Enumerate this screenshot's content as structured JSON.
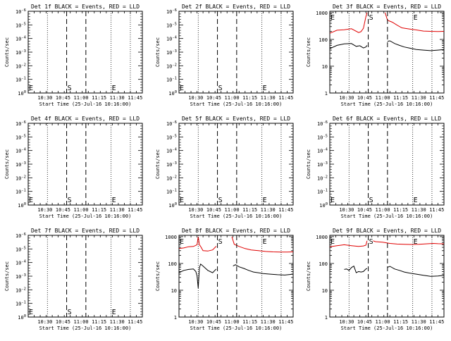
{
  "x_tick_labels": [
    "10:30",
    "10:45",
    "11:00",
    "11:15",
    "11:30",
    "11:45"
  ],
  "x_ticks_min": [
    14,
    29,
    44,
    59,
    74,
    89
  ],
  "xlabel": "Start Time (25-Jul-16 10:16:00)",
  "ylabel": "Counts/sec",
  "panels": [
    {
      "title": "Det 1f BLACK = Events, RED = LLD",
      "scale": "exp",
      "ytick_labels": [
        "10^0",
        "10^-1",
        "10^-2",
        "10^-3",
        "10^-4",
        "10^-5",
        "10^-6"
      ]
    },
    {
      "title": "Det 2f BLACK = Events, RED = LLD",
      "scale": "exp",
      "ytick_labels": [
        "10^0",
        "10^-1",
        "10^-2",
        "10^-3",
        "10^-4",
        "10^-5",
        "10^-6"
      ]
    },
    {
      "title": "Det 3f BLACK = Events, RED = LLD",
      "scale": "log",
      "ytick_labels": [
        "1",
        "10",
        "100",
        "1000"
      ]
    },
    {
      "title": "Det 4f BLACK = Events, RED = LLD",
      "scale": "exp",
      "ytick_labels": [
        "10^0",
        "10^-1",
        "10^-2",
        "10^-3",
        "10^-4",
        "10^-5",
        "10^-6"
      ]
    },
    {
      "title": "Det 5f BLACK = Events, RED = LLD",
      "scale": "exp",
      "ytick_labels": [
        "10^0",
        "10^-1",
        "10^-2",
        "10^-3",
        "10^-4",
        "10^-5",
        "10^-6"
      ]
    },
    {
      "title": "Det 6f BLACK = Events, RED = LLD",
      "scale": "exp",
      "ytick_labels": [
        "10^0",
        "10^-1",
        "10^-2",
        "10^-3",
        "10^-4",
        "10^-5",
        "10^-6"
      ]
    },
    {
      "title": "Det 7f BLACK = Events, RED = LLD",
      "scale": "exp",
      "ytick_labels": [
        "10^0",
        "10^-1",
        "10^-2",
        "10^-3",
        "10^-4",
        "10^-5",
        "10^-6"
      ]
    },
    {
      "title": "Det 8f BLACK = Events, RED = LLD",
      "scale": "log",
      "ytick_labels": [
        "1",
        "10",
        "100",
        "1000"
      ]
    },
    {
      "title": "Det 9f BLACK = Events, RED = LLD",
      "scale": "log",
      "ytick_labels": [
        "1",
        "10",
        "100",
        "1000"
      ]
    }
  ],
  "markers": {
    "dotted_min": [
      0,
      16,
      69,
      85
    ],
    "dashed_min": [
      32,
      48
    ],
    "labels": [
      {
        "text": "E",
        "x_min": 0.6
      },
      {
        "text": "S",
        "x_min": 32.6
      },
      {
        "text": "E",
        "x_min": 69.6
      }
    ]
  },
  "colors": {
    "events": "#000000",
    "lld": "#e00000",
    "axis": "#000000",
    "background": "#ffffff"
  },
  "chart_data": [
    {
      "type": "line",
      "title": "Det 1f BLACK = Events, RED = LLD",
      "series": []
    },
    {
      "type": "line",
      "title": "Det 2f BLACK = Events, RED = LLD",
      "series": []
    },
    {
      "type": "line",
      "title": "Det 3f BLACK = Events, RED = LLD",
      "ylim": [
        1,
        1000
      ],
      "yscale": "log",
      "series": [
        {
          "color": "red",
          "x": [
            0,
            6,
            12,
            18,
            24,
            26,
            28,
            30,
            31
          ],
          "y": [
            170,
            220,
            230,
            250,
            180,
            195,
            260,
            700,
            1000
          ]
        },
        {
          "color": "red",
          "x": [
            46,
            48,
            52,
            56,
            60,
            66,
            72,
            78,
            84,
            90,
            95
          ],
          "y": [
            1000,
            520,
            440,
            340,
            270,
            245,
            225,
            205,
            200,
            198,
            200
          ]
        },
        {
          "color": "black",
          "x": [
            0,
            6,
            12,
            18,
            22,
            25,
            28,
            30,
            31
          ],
          "y": [
            45,
            60,
            68,
            70,
            55,
            58,
            48,
            52,
            60
          ]
        },
        {
          "color": "black",
          "x": [
            48,
            50,
            54,
            58,
            62,
            66,
            72,
            78,
            84,
            90,
            95
          ],
          "y": [
            85,
            88,
            70,
            60,
            52,
            48,
            42,
            40,
            38,
            40,
            42
          ]
        }
      ]
    },
    {
      "type": "line",
      "title": "Det 4f BLACK = Events, RED = LLD",
      "series": []
    },
    {
      "type": "line",
      "title": "Det 5f BLACK = Events, RED = LLD",
      "series": []
    },
    {
      "type": "line",
      "title": "Det 6f BLACK = Events, RED = LLD",
      "series": []
    },
    {
      "type": "line",
      "title": "Det 7f BLACK = Events, RED = LLD",
      "series": []
    },
    {
      "type": "line",
      "title": "Det 8f BLACK = Events, RED = LLD",
      "ylim": [
        1,
        1000
      ],
      "yscale": "log",
      "series": [
        {
          "color": "red",
          "x": [
            0,
            4,
            8,
            12,
            15,
            16,
            17,
            18,
            20,
            24,
            28,
            31
          ],
          "y": [
            360,
            380,
            420,
            430,
            500,
            1000,
            500,
            430,
            300,
            290,
            320,
            440
          ]
        },
        {
          "color": "red",
          "x": [
            44,
            46,
            50,
            55,
            60,
            66,
            72,
            78,
            84,
            90,
            95
          ],
          "y": [
            1000,
            520,
            430,
            360,
            320,
            300,
            280,
            270,
            265,
            265,
            270
          ]
        },
        {
          "color": "black",
          "x": [
            0,
            4,
            8,
            12,
            14,
            15,
            16,
            17,
            18,
            20,
            24,
            28,
            31
          ],
          "y": [
            45,
            55,
            60,
            62,
            50,
            35,
            12,
            70,
            95,
            80,
            55,
            45,
            62
          ]
        },
        {
          "color": "black",
          "x": [
            45,
            47,
            50,
            54,
            58,
            62,
            66,
            70,
            76,
            82,
            88,
            95
          ],
          "y": [
            80,
            90,
            75,
            65,
            55,
            48,
            45,
            42,
            40,
            38,
            37,
            40
          ]
        }
      ]
    },
    {
      "type": "line",
      "title": "Det 9f BLACK = Events, RED = LLD",
      "ylim": [
        1,
        1000
      ],
      "yscale": "log",
      "series": [
        {
          "color": "red",
          "x": [
            0,
            6,
            12,
            18,
            24,
            28,
            30,
            31
          ],
          "y": [
            420,
            460,
            500,
            460,
            430,
            450,
            480,
            700
          ]
        },
        {
          "color": "red",
          "x": [
            36,
            38,
            44,
            50,
            56,
            62,
            68,
            74,
            80,
            86,
            90,
            95
          ],
          "y": [
            700,
            650,
            620,
            560,
            530,
            520,
            510,
            520,
            540,
            560,
            545,
            540
          ]
        },
        {
          "color": "black",
          "x": [
            12,
            14,
            16,
            18,
            20,
            22,
            24,
            26,
            28,
            30,
            31
          ],
          "y": [
            60,
            62,
            55,
            70,
            80,
            45,
            50,
            48,
            50,
            62,
            65
          ]
        },
        {
          "color": "black",
          "x": [
            48,
            50,
            54,
            58,
            62,
            66,
            72,
            78,
            84,
            90,
            95
          ],
          "y": [
            72,
            78,
            62,
            55,
            48,
            44,
            40,
            36,
            33,
            34,
            36
          ]
        }
      ]
    }
  ]
}
